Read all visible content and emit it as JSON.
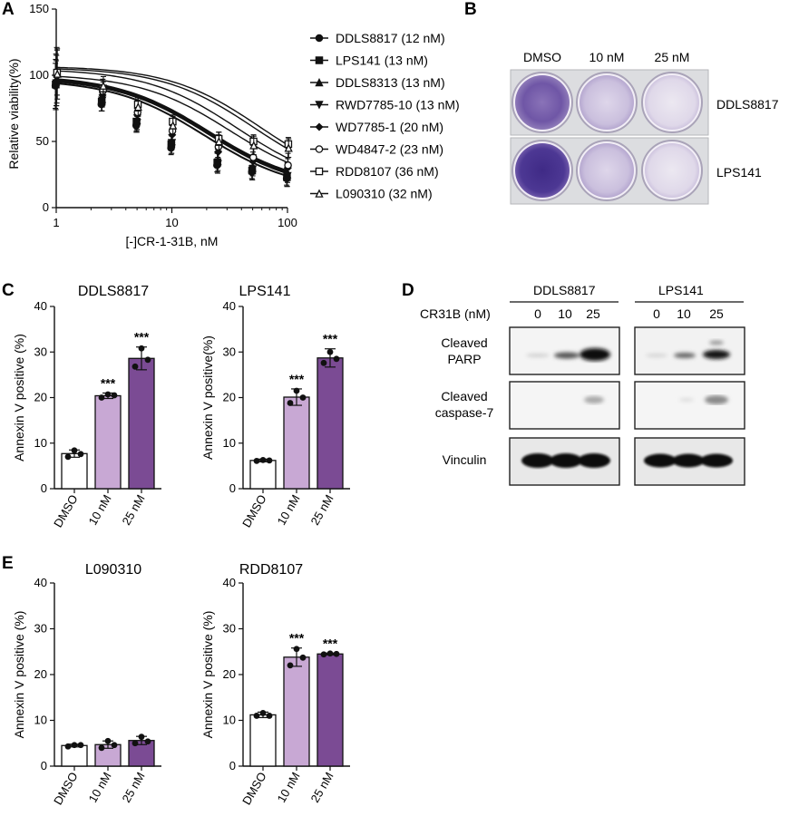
{
  "panel_letters": [
    "A",
    "B",
    "C",
    "D",
    "E"
  ],
  "chart_data": [
    {
      "id": "A",
      "type": "line",
      "subtype": "dose-response",
      "xlabel": "[-]CR-1-31B, nM",
      "ylabel": "Relative viability(%)",
      "xscale": "log",
      "xlim": [
        1,
        100
      ],
      "ylim": [
        0,
        150
      ],
      "xticks": [
        "1",
        "10",
        "100"
      ],
      "yticks": [
        "0",
        "50",
        "100",
        "150"
      ],
      "doses": [
        1,
        2.5,
        5,
        10,
        25,
        50,
        100
      ],
      "legend_placement": "right",
      "series": [
        {
          "name": "DDLS8817 (12 nM)",
          "marker": "filled-circle",
          "ic50": 12,
          "values": [
            92,
            78,
            62,
            45,
            32,
            27,
            22
          ]
        },
        {
          "name": "LPS141 (13 nM)",
          "marker": "filled-square",
          "ic50": 13,
          "values": [
            93,
            80,
            65,
            48,
            34,
            28,
            23
          ]
        },
        {
          "name": "DDLS8313 (13 nM)",
          "marker": "filled-triangle-up",
          "ic50": 13,
          "values": [
            95,
            82,
            66,
            50,
            35,
            30,
            25
          ]
        },
        {
          "name": "RWD7785-10 (13 nM)",
          "marker": "filled-triangle-down",
          "ic50": 13,
          "values": [
            94,
            81,
            64,
            49,
            33,
            29,
            24
          ]
        },
        {
          "name": "WD7785-1 (20 nM)",
          "marker": "filled-diamond",
          "ic50": 20,
          "values": [
            96,
            85,
            70,
            55,
            42,
            35,
            30
          ]
        },
        {
          "name": "WD4847-2 (23 nM)",
          "marker": "open-circle",
          "ic50": 23,
          "values": [
            100,
            88,
            72,
            58,
            46,
            38,
            32
          ]
        },
        {
          "name": "RDD8107 (36 nM)",
          "marker": "open-square",
          "ic50": 36,
          "values": [
            102,
            90,
            78,
            65,
            52,
            50,
            48
          ]
        },
        {
          "name": "L090310 (32 nM)",
          "marker": "open-triangle",
          "ic50": 32,
          "values": [
            101,
            92,
            76,
            62,
            50,
            47,
            45
          ]
        }
      ]
    },
    {
      "id": "C1",
      "type": "bar",
      "title": "DDLS8817",
      "ylabel": "Annexin V positive (%)",
      "ylim": [
        0,
        40
      ],
      "yticks": [
        "0",
        "10",
        "20",
        "30",
        "40"
      ],
      "categories": [
        "DMSO",
        "10 nM",
        "25 nM"
      ],
      "values": [
        7.7,
        20.4,
        28.6
      ],
      "errors": [
        0.8,
        0.6,
        2.5
      ],
      "points": [
        [
          7.0,
          8.4,
          7.6
        ],
        [
          20.0,
          20.7,
          20.5
        ],
        [
          26.8,
          30.8,
          28.3
        ]
      ],
      "annotations": [
        "",
        "***",
        "***"
      ]
    },
    {
      "id": "C2",
      "type": "bar",
      "title": "LPS141",
      "ylabel": "Annexin V positive(%)",
      "ylim": [
        0,
        40
      ],
      "yticks": [
        "0",
        "10",
        "20",
        "30",
        "40"
      ],
      "categories": [
        "DMSO",
        "10 nM",
        "25 nM"
      ],
      "values": [
        6.2,
        20.1,
        28.7
      ],
      "errors": [
        0.3,
        1.8,
        2.0
      ],
      "points": [
        [
          6.1,
          6.3,
          6.2
        ],
        [
          18.8,
          21.5,
          20.0
        ],
        [
          27.6,
          30.0,
          28.5
        ]
      ],
      "annotations": [
        "",
        "***",
        "***"
      ]
    },
    {
      "id": "E1",
      "type": "bar",
      "title": "L090310",
      "ylabel": "Annexin V positive (%)",
      "ylim": [
        0,
        40
      ],
      "yticks": [
        "0",
        "10",
        "20",
        "30",
        "40"
      ],
      "categories": [
        "DMSO",
        "10 nM",
        "25 nM"
      ],
      "values": [
        4.5,
        4.7,
        5.6
      ],
      "errors": [
        0.3,
        0.8,
        0.9
      ],
      "points": [
        [
          4.3,
          4.6,
          4.6
        ],
        [
          4.0,
          5.5,
          4.6
        ],
        [
          5.0,
          6.4,
          5.4
        ]
      ],
      "annotations": [
        "",
        "",
        ""
      ]
    },
    {
      "id": "E2",
      "type": "bar",
      "title": "RDD8107",
      "ylabel": "Annexin V positive (%)",
      "ylim": [
        0,
        40
      ],
      "yticks": [
        "0",
        "10",
        "20",
        "30",
        "40"
      ],
      "categories": [
        "DMSO",
        "10 nM",
        "25 nM"
      ],
      "values": [
        11.2,
        23.8,
        24.5
      ],
      "errors": [
        0.6,
        2.0,
        0.2
      ],
      "points": [
        [
          11.0,
          11.6,
          11.0
        ],
        [
          22.0,
          25.6,
          23.7
        ],
        [
          24.4,
          24.6,
          24.5
        ]
      ],
      "annotations": [
        "",
        "***",
        "***"
      ]
    }
  ],
  "panelB": {
    "columns": [
      "DMSO",
      "10 nM",
      "25 nM"
    ],
    "rows": [
      "DDLS8817",
      "LPS141"
    ]
  },
  "panelD": {
    "treatment_label": "CR31B (nM)",
    "groups": [
      {
        "name": "DDLS8817",
        "lanes": [
          "0",
          "10",
          "25"
        ]
      },
      {
        "name": "LPS141",
        "lanes": [
          "0",
          "10",
          "25"
        ]
      }
    ],
    "blots": [
      {
        "label_line1": "Cleaved",
        "label_line2": "PARP"
      },
      {
        "label_line1": "Cleaved",
        "label_line2": "caspase-7"
      },
      {
        "label_line1": "",
        "label_line2": "Vinculin"
      }
    ]
  },
  "colors": {
    "dmso_bar": "#ffffff",
    "bar_10nM": "#c8a8d4",
    "bar_25nM": "#7b4b94",
    "stain_dense": "#4a3590",
    "stain_mid": "#6a4fa0",
    "stain_light": "#c9bfdc"
  }
}
